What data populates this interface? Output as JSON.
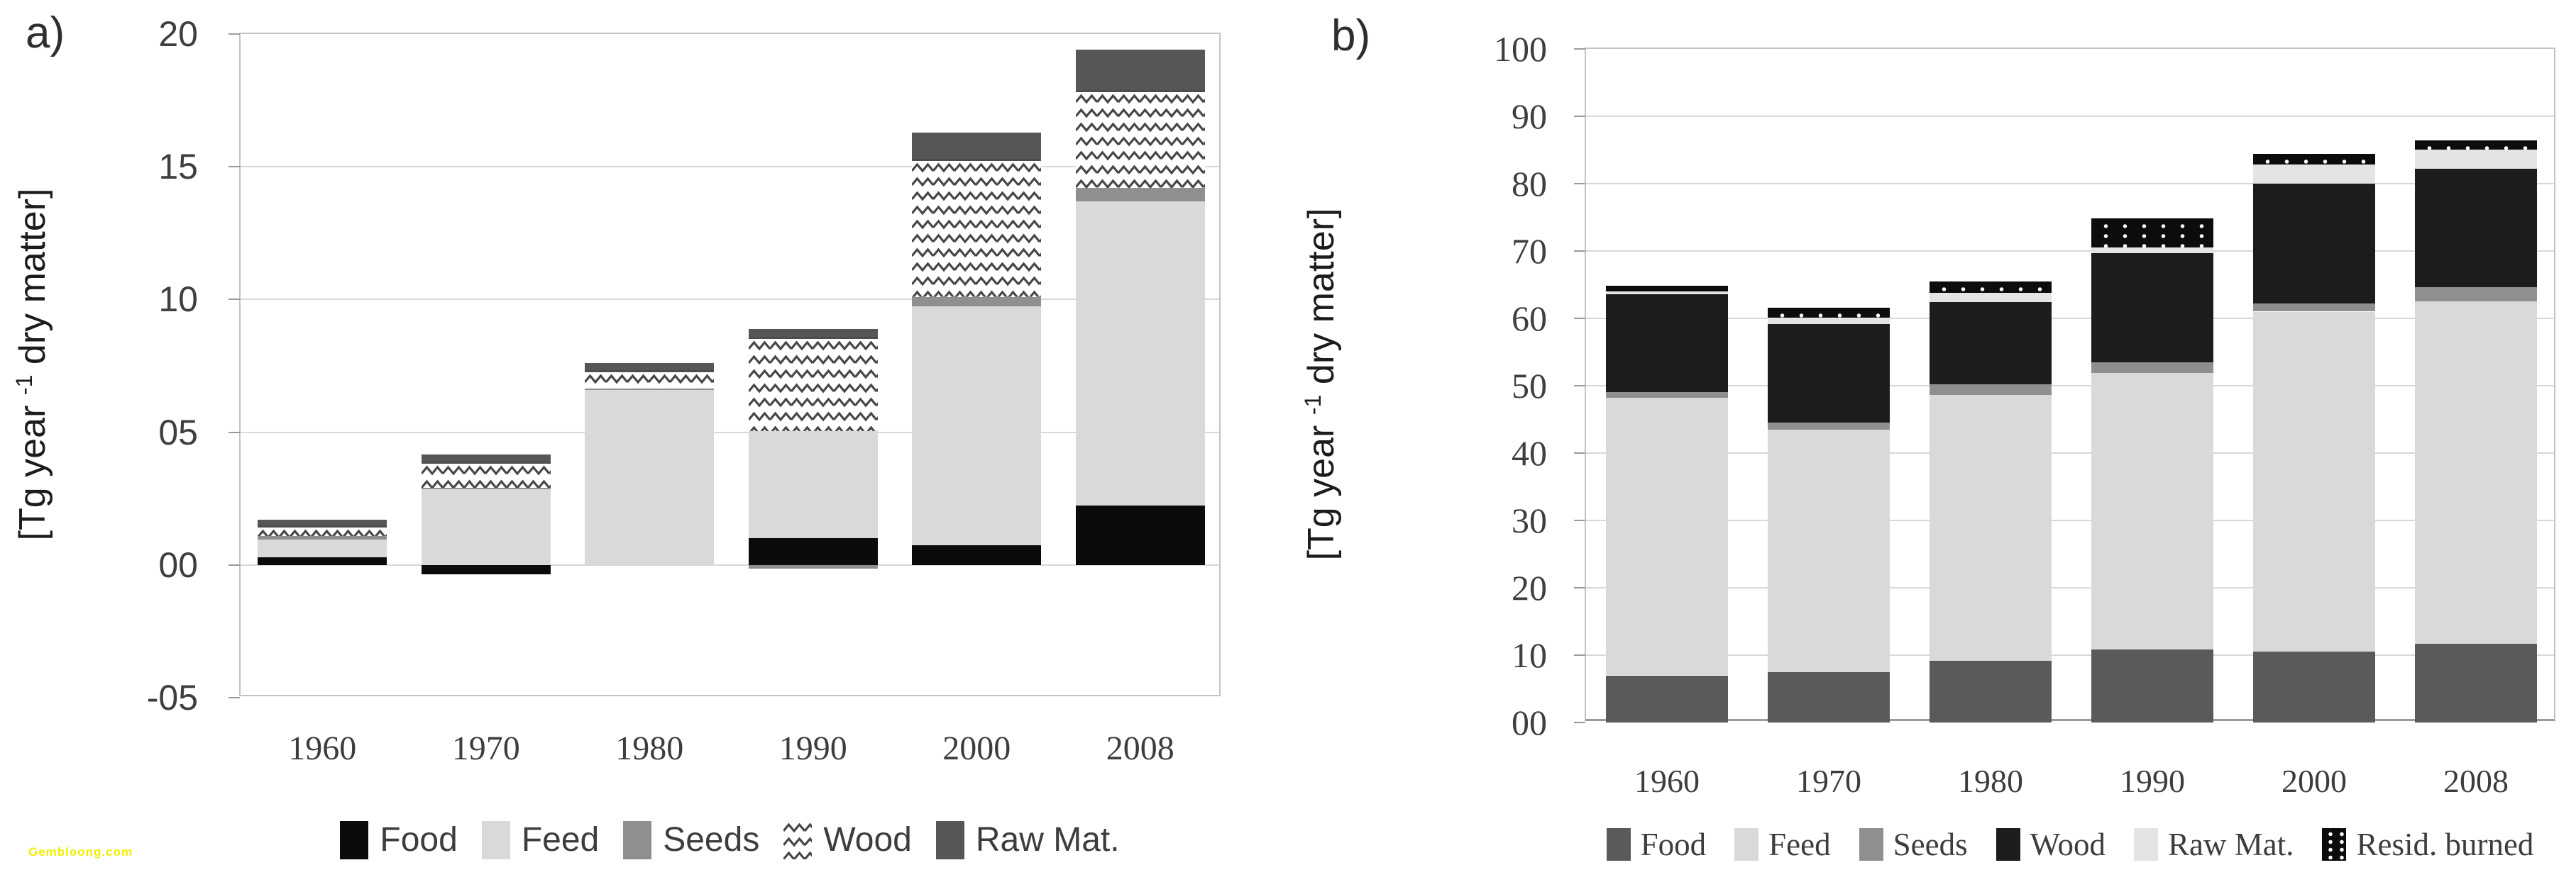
{
  "watermark": {
    "text": "Gembloong.com"
  },
  "chart_data": [
    {
      "id": "a",
      "type": "bar",
      "stacked": true,
      "panel_label": "a)",
      "y_title": {
        "pre": "[Tg year ",
        "sup": "-1",
        "post": " dry matter]"
      },
      "categories": [
        "1960",
        "1970",
        "1980",
        "1990",
        "2000",
        "2008"
      ],
      "series": [
        {
          "name": "Food",
          "swatch": "solid",
          "color": "#0b0b0b",
          "values": [
            0.3,
            -0.35,
            0,
            1.0,
            0.75,
            2.25
          ]
        },
        {
          "name": "Feed",
          "swatch": "solid",
          "color": "#d9d9d9",
          "values": [
            0.65,
            2.85,
            6.6,
            4.05,
            9.0,
            11.45
          ]
        },
        {
          "name": "Seeds",
          "swatch": "solid",
          "color": "#8f8f8f",
          "values": [
            0.15,
            0.05,
            0.05,
            -0.15,
            0.35,
            0.5
          ]
        },
        {
          "name": "Wood",
          "swatch": "zigzag",
          "color": "#4a4a4a",
          "values": [
            0.4,
            1.0,
            0.7,
            3.55,
            5.2,
            3.7
          ]
        },
        {
          "name": "Raw Mat.",
          "swatch": "solid",
          "color": "#565656",
          "values": [
            0.2,
            0.25,
            0.25,
            0.3,
            1.0,
            1.5
          ]
        }
      ],
      "ylim": [
        -5,
        20
      ],
      "yticks": [
        {
          "v": -5,
          "label": "-05"
        },
        {
          "v": 0,
          "label": "00"
        },
        {
          "v": 5,
          "label": "05"
        },
        {
          "v": 10,
          "label": "10"
        },
        {
          "v": 15,
          "label": "15"
        },
        {
          "v": 20,
          "label": "20"
        }
      ],
      "grid": true,
      "legend_position": "bottom"
    },
    {
      "id": "b",
      "type": "bar",
      "stacked": true,
      "panel_label": "b)",
      "y_title": {
        "pre": "[Tg year ",
        "sup": "-1",
        "post": " dry matter]"
      },
      "categories": [
        "1960",
        "1970",
        "1980",
        "1990",
        "2000",
        "2008"
      ],
      "series": [
        {
          "name": "Food",
          "swatch": "solid",
          "color": "#5a5a5a",
          "values": [
            7.0,
            7.5,
            9.2,
            10.8,
            10.5,
            11.7
          ]
        },
        {
          "name": "Feed",
          "swatch": "solid",
          "color": "#d9d9d9",
          "values": [
            41.2,
            36.0,
            39.4,
            41.1,
            50.5,
            50.8
          ]
        },
        {
          "name": "Seeds",
          "swatch": "solid",
          "color": "#8f8f8f",
          "values": [
            0.9,
            1.0,
            1.6,
            1.6,
            1.2,
            2.1
          ]
        },
        {
          "name": "Wood",
          "swatch": "solid",
          "color": "#1c1c1c",
          "values": [
            14.5,
            14.7,
            12.2,
            16.2,
            17.8,
            17.6
          ]
        },
        {
          "name": "Raw Mat.",
          "swatch": "solid",
          "color": "#e4e4e4",
          "values": [
            0.4,
            0.9,
            1.4,
            0.8,
            2.8,
            2.9
          ]
        },
        {
          "name": "Resid. burned",
          "swatch": "dots",
          "color": "#0c0c0c",
          "values": [
            0.8,
            1.5,
            1.7,
            4.3,
            1.6,
            1.3
          ]
        }
      ],
      "ylim": [
        0,
        100
      ],
      "yticks": [
        {
          "v": 0,
          "label": "00"
        },
        {
          "v": 10,
          "label": "10"
        },
        {
          "v": 20,
          "label": "20"
        },
        {
          "v": 30,
          "label": "30"
        },
        {
          "v": 40,
          "label": "40"
        },
        {
          "v": 50,
          "label": "50"
        },
        {
          "v": 60,
          "label": "60"
        },
        {
          "v": 70,
          "label": "70"
        },
        {
          "v": 80,
          "label": "80"
        },
        {
          "v": 90,
          "label": "90"
        },
        {
          "v": 100,
          "label": "100"
        }
      ],
      "grid": true,
      "legend_position": "bottom"
    }
  ]
}
